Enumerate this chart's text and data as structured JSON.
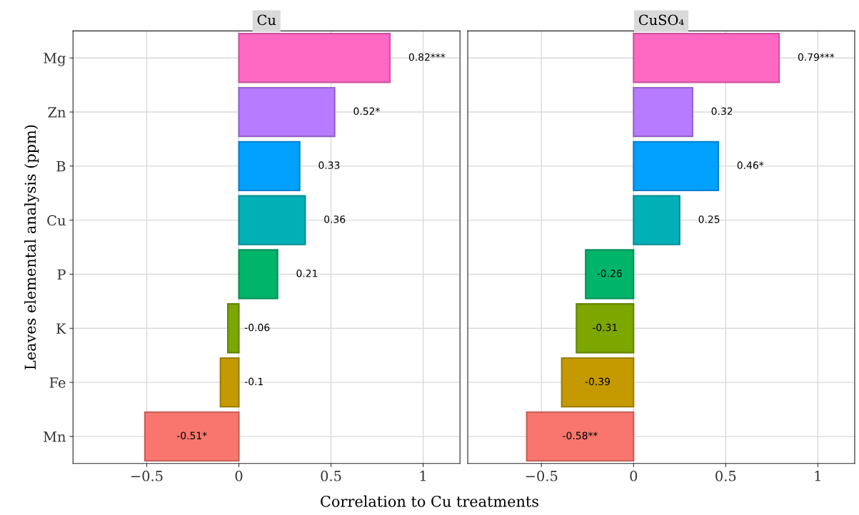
{
  "chart_data": [
    {
      "type": "bar",
      "orientation": "horizontal",
      "title": "Cu",
      "ylabel": "Leaves elemental analysis (ppm)",
      "xlabel": "Correlation to Cu treatments",
      "categories": [
        "Mg",
        "Zn",
        "B",
        "Cu",
        "P",
        "K",
        "Fe",
        "Mn"
      ],
      "values": [
        0.82,
        0.52,
        0.33,
        0.36,
        0.21,
        -0.06,
        -0.1,
        -0.51
      ],
      "value_labels": [
        "0.82***",
        "0.52*",
        "0.33",
        "0.36",
        "0.21",
        "-0.06",
        "-0.1",
        "-0.51*"
      ],
      "colors": [
        "#ff69c4",
        "#b77bff",
        "#00a0ff",
        "#00b0b6",
        "#00b46a",
        "#7ca600",
        "#c49a00",
        "#f8766d"
      ],
      "xlim": [
        -0.9,
        1.2
      ],
      "xticks": [
        {
          "value": -0.5,
          "label": "−0.5"
        },
        0,
        0.5,
        1
      ],
      "grid": true
    },
    {
      "type": "bar",
      "orientation": "horizontal",
      "title": "CuSO₄",
      "categories": [
        null,
        null,
        null,
        null,
        null,
        null,
        null,
        null
      ],
      "values": [
        0.79,
        0.32,
        0.46,
        0.25,
        -0.26,
        -0.31,
        -0.39,
        -0.58
      ],
      "value_labels": [
        "0.79***",
        "0.32",
        "0.46*",
        "0.25",
        "-0.26",
        "-0.31",
        "-0.39",
        "-0.58**"
      ],
      "colors": [
        "#ff69c4",
        "#b77bff",
        "#00a0ff",
        "#00b0b6",
        "#00b46a",
        "#7ca600",
        "#c49a00",
        "#f8766d"
      ],
      "xlim": [
        -0.9,
        1.2
      ],
      "xticks": [
        {
          "value": -0.5,
          "label": "−0.5"
        },
        0,
        0.5,
        1
      ],
      "grid": true,
      "tick_labels": "x"
    }
  ]
}
